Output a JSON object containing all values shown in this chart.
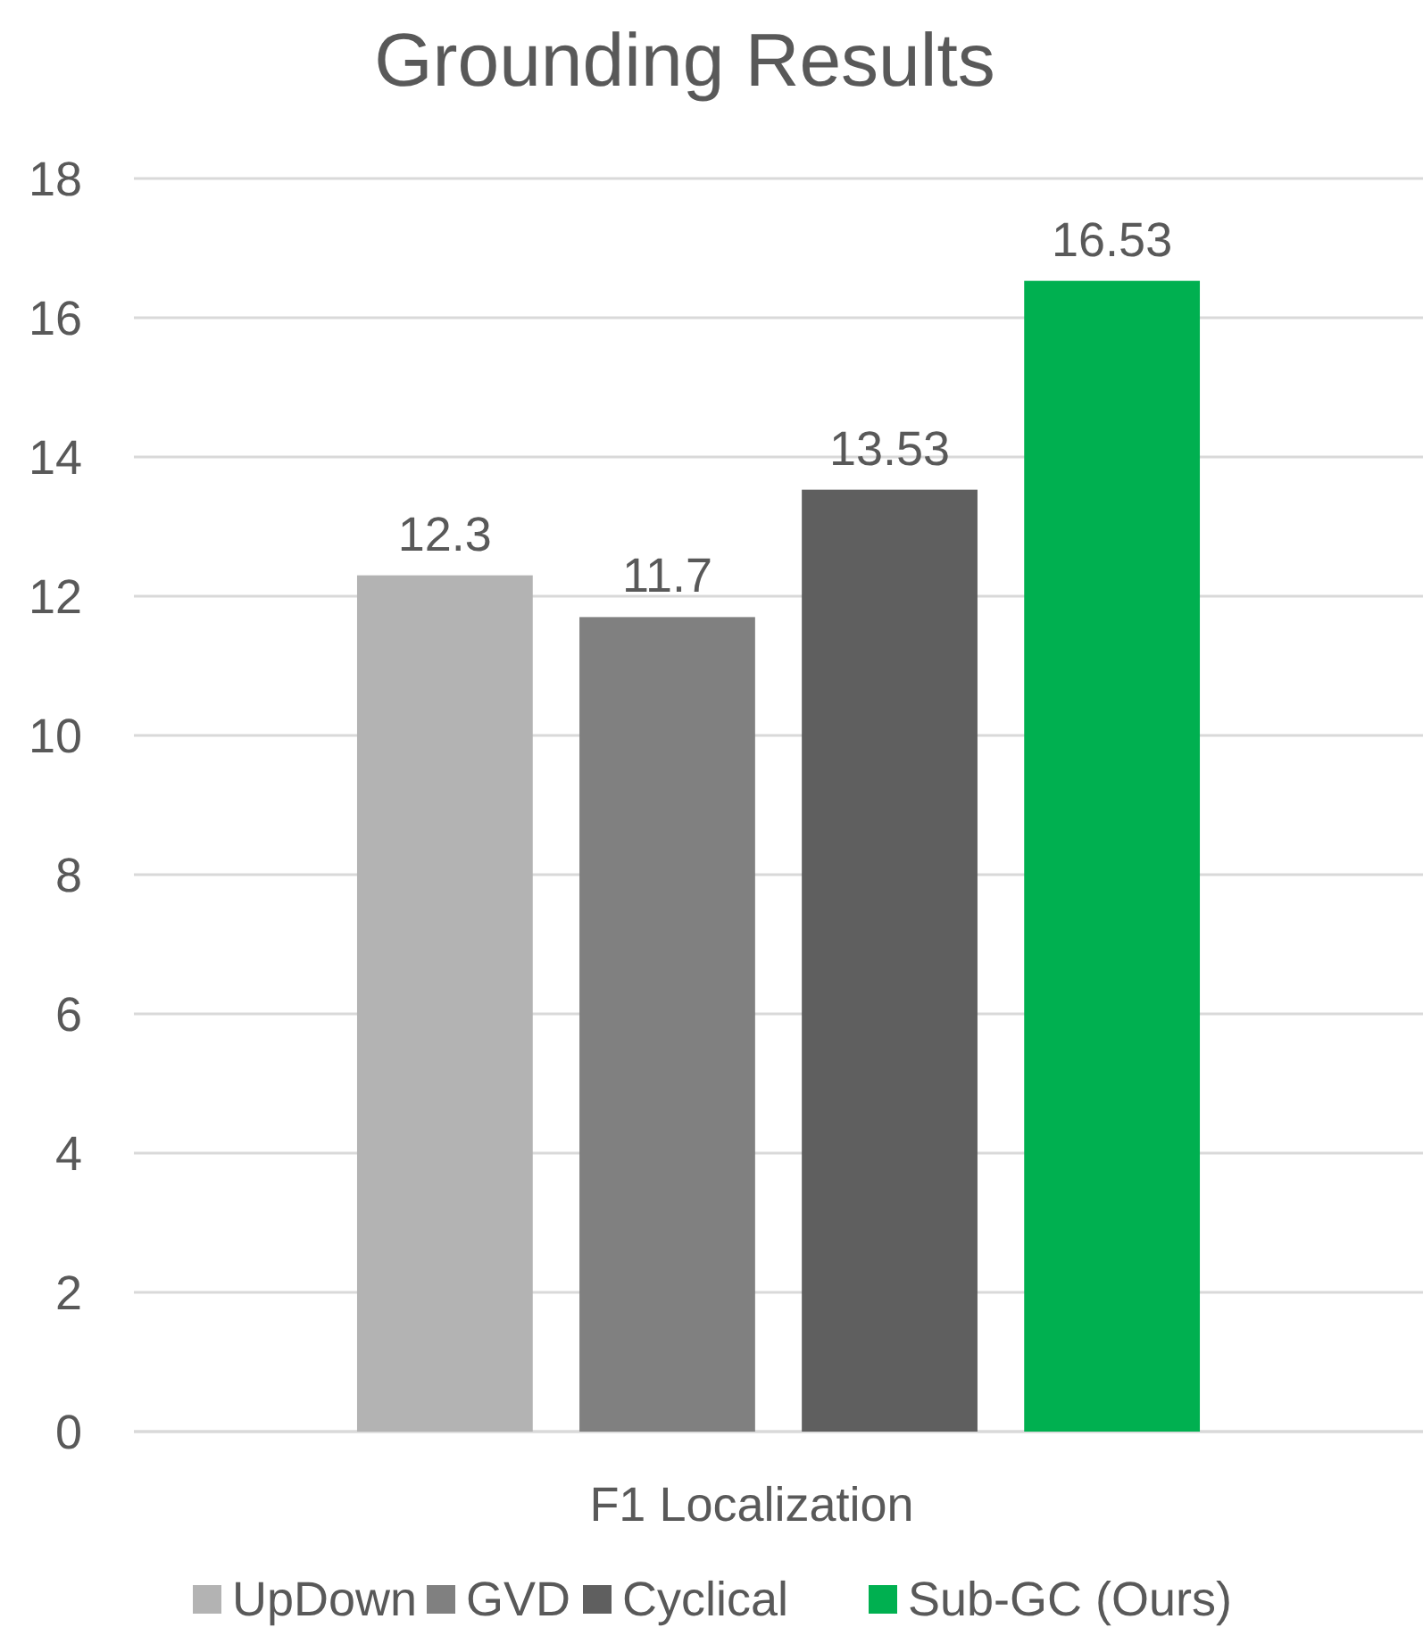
{
  "chart_data": {
    "type": "bar",
    "title": "Grounding Results",
    "categories": [
      "F1 Localization"
    ],
    "series": [
      {
        "name": "UpDown",
        "color": "#b3b3b3",
        "values": [
          12.3
        ]
      },
      {
        "name": "GVD",
        "color": "#808080",
        "values": [
          11.7
        ]
      },
      {
        "name": "Cyclical",
        "color": "#5f5f5f",
        "values": [
          13.53
        ]
      },
      {
        "name": "Sub-GC (Ours)",
        "color": "#00b050",
        "values": [
          16.53
        ]
      }
    ],
    "ylim": [
      0,
      18
    ],
    "yticks": [
      0,
      2,
      4,
      6,
      8,
      10,
      12,
      14,
      16,
      18
    ],
    "grid": "y",
    "data_labels": true,
    "legend": "bottom"
  }
}
